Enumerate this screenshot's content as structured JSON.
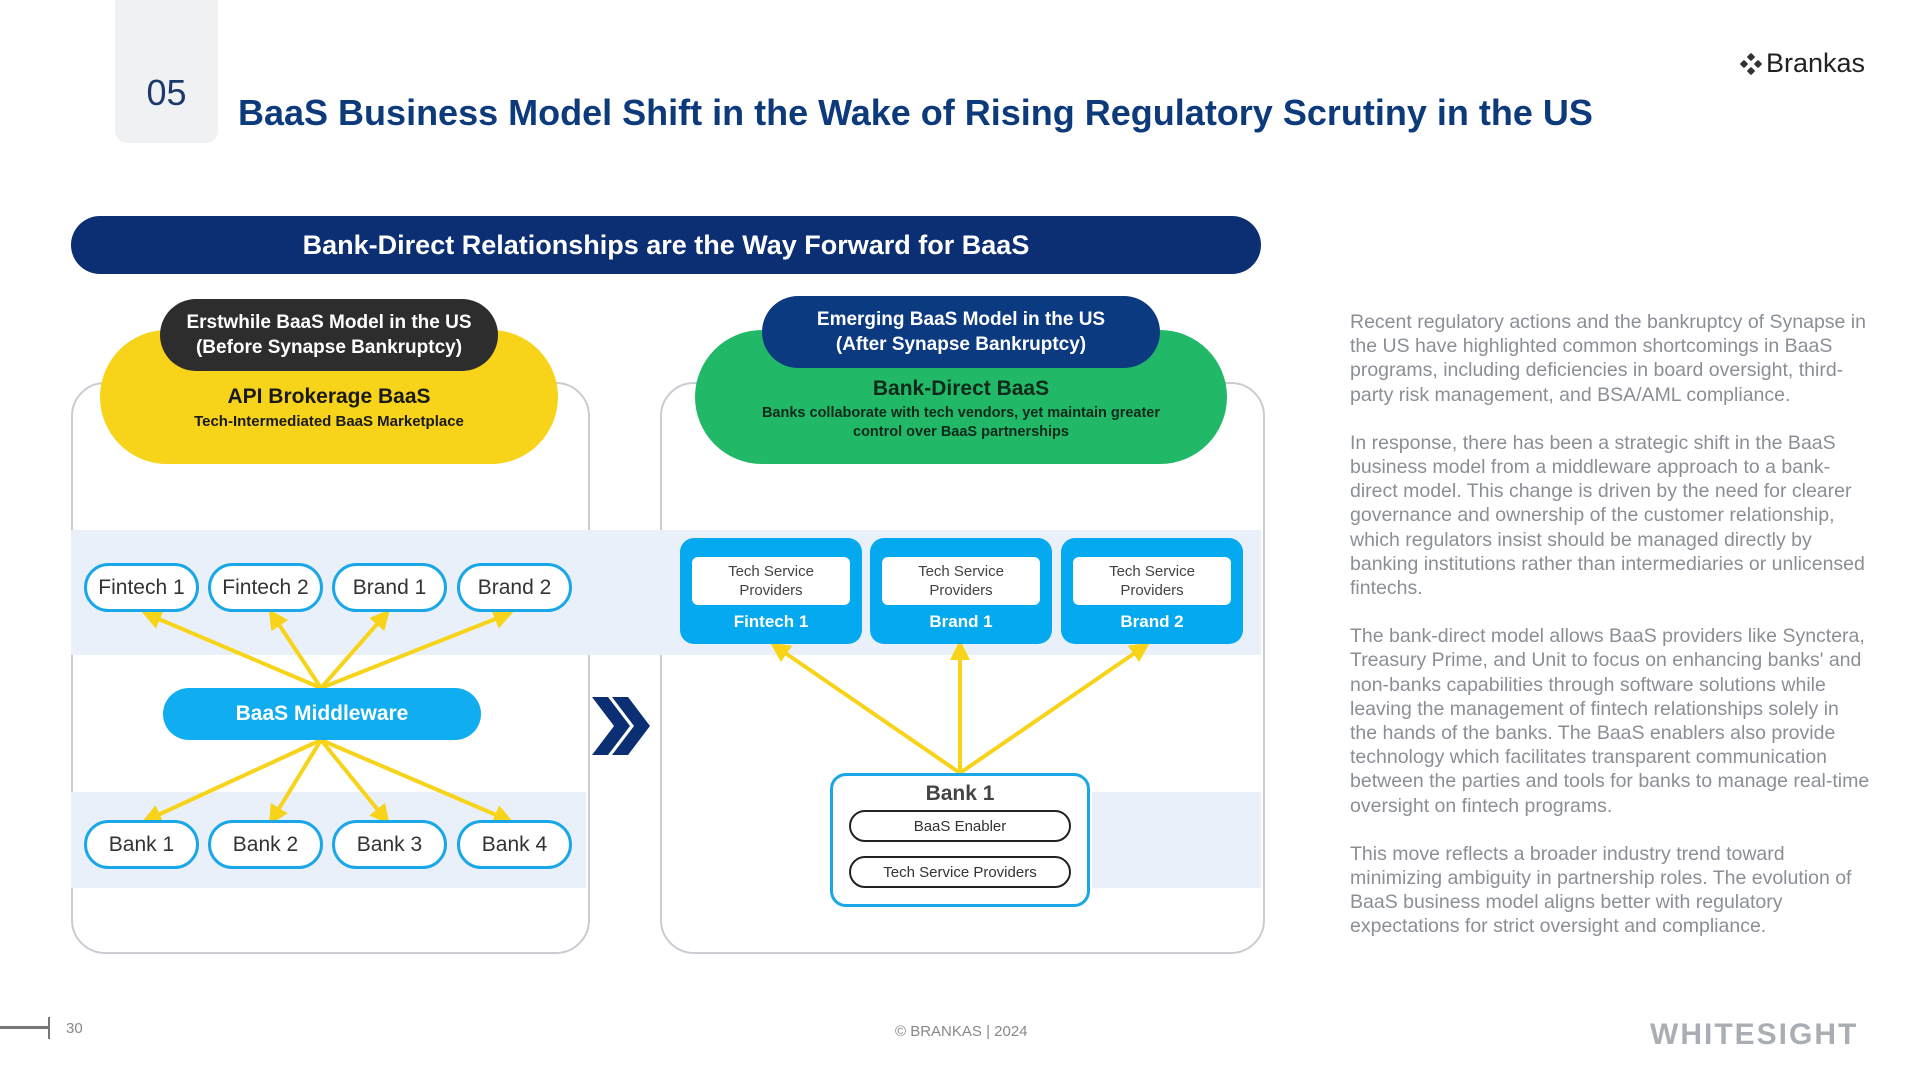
{
  "header": {
    "section_number": "05",
    "title": "BaaS Business Model Shift in the Wake of Rising Regulatory Scrutiny in the US",
    "brand_name": "Brankas"
  },
  "banner": "Bank-Direct Relationships are the Way Forward for BaaS",
  "left_panel": {
    "header_line1": "Erstwhile BaaS Model in the US",
    "header_line2": "(Before Synapse Bankruptcy)",
    "cloud_title": "API Brokerage BaaS",
    "cloud_subtitle": "Tech-Intermediated  BaaS Marketplace",
    "top_nodes": [
      "Fintech 1",
      "Fintech 2",
      "Brand 1",
      "Brand 2"
    ],
    "middleware": "BaaS Middleware",
    "bottom_nodes": [
      "Bank 1",
      "Bank 2",
      "Bank 3",
      "Bank 4"
    ]
  },
  "right_panel": {
    "header_line1": "Emerging BaaS Model in the US",
    "header_line2": "(After Synapse Bankruptcy)",
    "cloud_title": "Bank-Direct  BaaS",
    "cloud_sub1": "Banks collaborate with tech vendors, yet maintain greater",
    "cloud_sub2": "control over BaaS partnerships",
    "cards": [
      {
        "line1": "Tech Service",
        "line2": "Providers",
        "label": "Fintech 1"
      },
      {
        "line1": "Tech Service",
        "line2": "Providers",
        "label": "Brand 1"
      },
      {
        "line1": "Tech Service",
        "line2": "Providers",
        "label": "Brand 2"
      }
    ],
    "bank": {
      "title": "Bank 1",
      "enabler": "BaaS Enabler",
      "providers": "Tech Service Providers"
    }
  },
  "body_paragraphs": [
    "Recent regulatory actions and the bankruptcy of Synapse in the US have highlighted common shortcomings in BaaS programs, including deficiencies in board oversight, third-party risk management, and BSA/AML compliance.",
    "In response, there has been a strategic shift in the BaaS business model from a middleware approach to a bank-direct model. This change is driven by the need for clearer governance and ownership of the customer relationship, which regulators insist should be managed directly by banking institutions rather than intermediaries or unlicensed fintechs.",
    "The bank-direct model allows BaaS providers like Synctera, Treasury Prime, and Unit to focus on enhancing banks' and non-banks capabilities through software solutions while leaving the management of fintech relationships solely in the hands of the banks. The BaaS enablers also provide technology which facilitates transparent communication between the parties and tools for banks to manage real-time oversight on fintech programs.",
    "This move reflects a broader industry trend toward minimizing ambiguity in partnership roles. The evolution of BaaS business model aligns better with regulatory expectations for strict oversight and compliance."
  ],
  "footer": {
    "page_number": "30",
    "copyright": "© BRANKAS | 2024",
    "watermark": "WHITESIGHT"
  },
  "colors": {
    "navy": "#0b2f72",
    "title_blue": "#0d3a7a",
    "yellow": "#f7d31a",
    "green": "#21b868",
    "cyan": "#04a9ef",
    "arrow_yellow": "#f7d31a"
  }
}
